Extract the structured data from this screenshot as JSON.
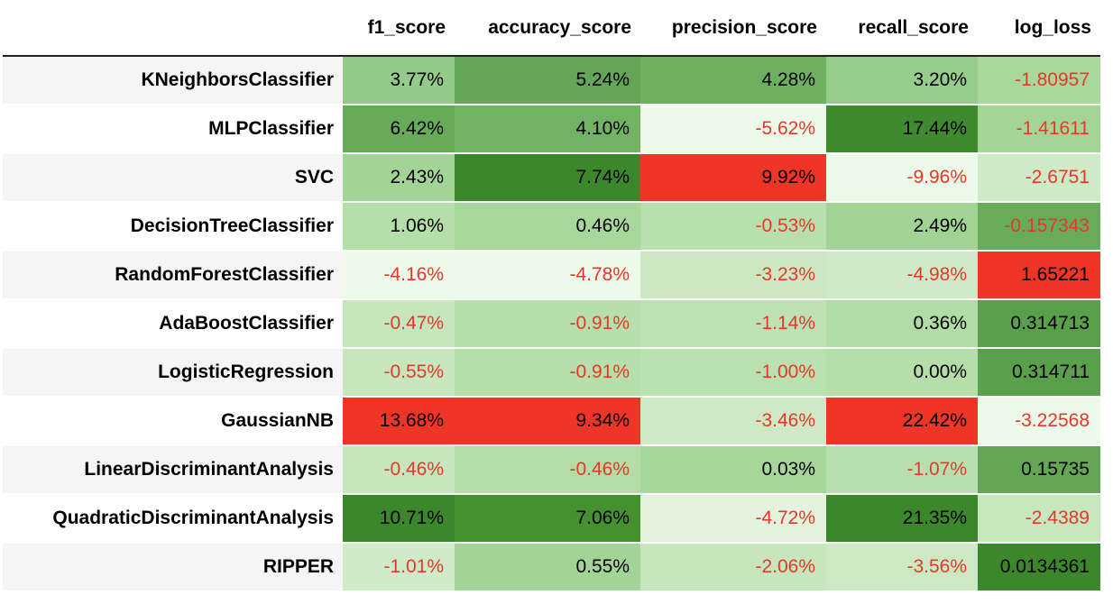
{
  "columns": [
    {
      "key": "f1_score",
      "label": "f1_score"
    },
    {
      "key": "accuracy_score",
      "label": "accuracy_score"
    },
    {
      "key": "precision_score",
      "label": "precision_score"
    },
    {
      "key": "recall_score",
      "label": "recall_score"
    },
    {
      "key": "log_loss",
      "label": "log_loss"
    }
  ],
  "colors": {
    "text_negative": "#e8372a",
    "text_positive": "#000000",
    "highlight_red": "#ee3526"
  },
  "rows": [
    {
      "name": "KNeighborsClassifier",
      "cells": [
        {
          "text": "3.77%",
          "bg": "#94cb88",
          "neg": false
        },
        {
          "text": "5.24%",
          "bg": "#64a657",
          "neg": false
        },
        {
          "text": "4.28%",
          "bg": "#6db05f",
          "neg": false
        },
        {
          "text": "3.20%",
          "bg": "#97cd8c",
          "neg": false
        },
        {
          "text": "-1.80957",
          "bg": "#a8d89c",
          "neg": true
        }
      ]
    },
    {
      "name": "MLPClassifier",
      "cells": [
        {
          "text": "6.42%",
          "bg": "#67aa5a",
          "neg": false
        },
        {
          "text": "4.10%",
          "bg": "#72b265",
          "neg": false
        },
        {
          "text": "-5.62%",
          "bg": "#edf9e9",
          "neg": true
        },
        {
          "text": "17.44%",
          "bg": "#3f892f",
          "neg": false
        },
        {
          "text": "-1.41611",
          "bg": "#a3d597",
          "neg": true
        }
      ]
    },
    {
      "name": "SVC",
      "cells": [
        {
          "text": "2.43%",
          "bg": "#a3d497",
          "neg": false
        },
        {
          "text": "7.74%",
          "bg": "#3c872c",
          "neg": false
        },
        {
          "text": "9.92%",
          "bg": "#ee3526",
          "neg": false
        },
        {
          "text": "-9.96%",
          "bg": "#edf9e9",
          "neg": true
        },
        {
          "text": "-2.6751",
          "bg": "#cfeac7",
          "neg": true
        }
      ]
    },
    {
      "name": "DecisionTreeClassifier",
      "cells": [
        {
          "text": "1.06%",
          "bg": "#b5dea9",
          "neg": false
        },
        {
          "text": "0.46%",
          "bg": "#a8d79c",
          "neg": false
        },
        {
          "text": "-0.53%",
          "bg": "#b8e0ad",
          "neg": true
        },
        {
          "text": "2.49%",
          "bg": "#a1d395",
          "neg": false
        },
        {
          "text": "-0.157343",
          "bg": "#68ab5b",
          "neg": true
        }
      ]
    },
    {
      "name": "RandomForestClassifier",
      "cells": [
        {
          "text": "-4.16%",
          "bg": "#edf9e9",
          "neg": true
        },
        {
          "text": "-4.78%",
          "bg": "#edf9e9",
          "neg": true
        },
        {
          "text": "-3.23%",
          "bg": "#cbe8c3",
          "neg": true
        },
        {
          "text": "-4.98%",
          "bg": "#cfeac7",
          "neg": true
        },
        {
          "text": "1.65221",
          "bg": "#ee3526",
          "neg": false
        }
      ]
    },
    {
      "name": "AdaBoostClassifier",
      "cells": [
        {
          "text": "-0.47%",
          "bg": "#c6e6bd",
          "neg": true
        },
        {
          "text": "-0.91%",
          "bg": "#b7dfac",
          "neg": true
        },
        {
          "text": "-1.14%",
          "bg": "#bee2b3",
          "neg": true
        },
        {
          "text": "0.36%",
          "bg": "#b2dca6",
          "neg": false
        },
        {
          "text": "0.314713",
          "bg": "#5a9f4c",
          "neg": false
        }
      ]
    },
    {
      "name": "LogisticRegression",
      "cells": [
        {
          "text": "-0.55%",
          "bg": "#c7e6be",
          "neg": true
        },
        {
          "text": "-0.91%",
          "bg": "#b7dfac",
          "neg": true
        },
        {
          "text": "-1.00%",
          "bg": "#bce1b1",
          "neg": true
        },
        {
          "text": "0.00%",
          "bg": "#b5dea9",
          "neg": false
        },
        {
          "text": "0.314711",
          "bg": "#5a9f4c",
          "neg": false
        }
      ]
    },
    {
      "name": "GaussianNB",
      "cells": [
        {
          "text": "13.68%",
          "bg": "#ee3526",
          "neg": false
        },
        {
          "text": "9.34%",
          "bg": "#ee3526",
          "neg": false
        },
        {
          "text": "-3.46%",
          "bg": "#cde9c5",
          "neg": true
        },
        {
          "text": "22.42%",
          "bg": "#ee3526",
          "neg": false
        },
        {
          "text": "-3.22568",
          "bg": "#edf9e9",
          "neg": true
        }
      ]
    },
    {
      "name": "LinearDiscriminantAnalysis",
      "cells": [
        {
          "text": "-0.46%",
          "bg": "#c6e6bd",
          "neg": true
        },
        {
          "text": "-0.46%",
          "bg": "#b3dca7",
          "neg": true
        },
        {
          "text": "0.03%",
          "bg": "#a6d69a",
          "neg": false
        },
        {
          "text": "-1.07%",
          "bg": "#badfaf",
          "neg": true
        },
        {
          "text": "0.15735",
          "bg": "#63a756",
          "neg": false
        }
      ]
    },
    {
      "name": "QuadraticDiscriminantAnalysis",
      "cells": [
        {
          "text": "10.71%",
          "bg": "#3c872c",
          "neg": false
        },
        {
          "text": "7.06%",
          "bg": "#45902f",
          "neg": false
        },
        {
          "text": "-4.72%",
          "bg": "#e3f3dd",
          "neg": true
        },
        {
          "text": "21.35%",
          "bg": "#3c872c",
          "neg": false
        },
        {
          "text": "-2.4389",
          "bg": "#c7e7be",
          "neg": true
        }
      ]
    },
    {
      "name": "RIPPER",
      "cells": [
        {
          "text": "-1.01%",
          "bg": "#d0ebc8",
          "neg": true
        },
        {
          "text": "0.55%",
          "bg": "#a3d497",
          "neg": false
        },
        {
          "text": "-2.06%",
          "bg": "#c6e6bd",
          "neg": true
        },
        {
          "text": "-3.56%",
          "bg": "#cce9c4",
          "neg": true
        },
        {
          "text": "0.0134361",
          "bg": "#3c872c",
          "neg": false
        }
      ]
    }
  ]
}
